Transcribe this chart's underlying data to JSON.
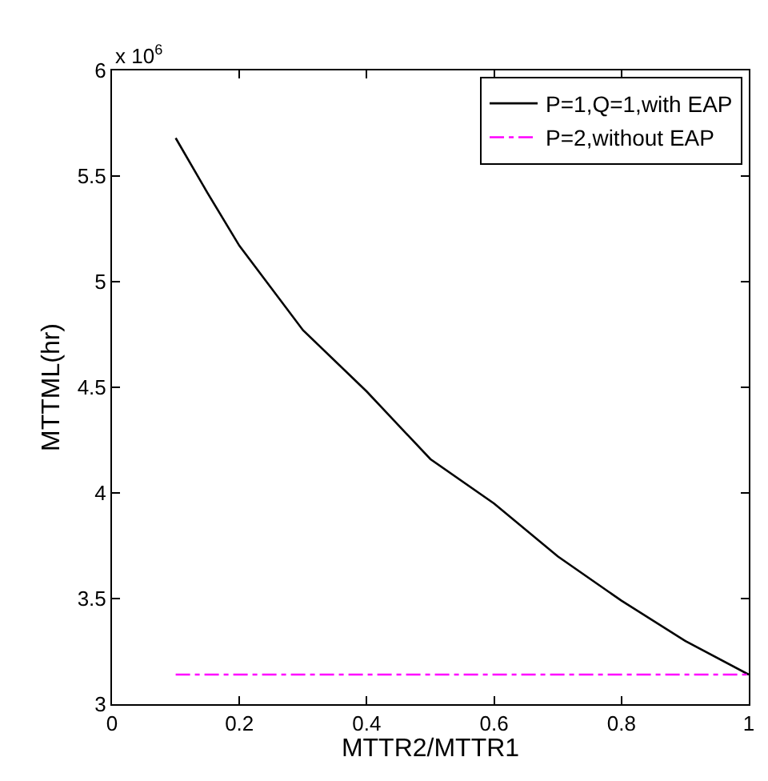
{
  "chart_data": {
    "type": "line",
    "xlabel": "MTTR2/MTTR1",
    "ylabel": "MTTML(hr)",
    "annotations": [
      "x 10$^{6}$"
    ],
    "xlim": [
      0,
      1
    ],
    "xticks": [
      0,
      0.2,
      0.4,
      0.6,
      0.8,
      1
    ],
    "ylim": [
      3,
      6
    ],
    "yticks": [
      3,
      3.5,
      4,
      4.5,
      5,
      5.5,
      6
    ],
    "legend": "top right",
    "series": [
      {
        "name": "P=1,Q=1,with EAP",
        "color": "#000000",
        "line_style": "solid",
        "x": [
          0.1,
          0.15,
          0.2,
          0.3,
          0.4,
          0.5,
          0.6,
          0.7,
          0.8,
          0.9,
          1.0
        ],
        "values": [
          5.68,
          5.42,
          5.17,
          4.77,
          4.48,
          4.16,
          3.95,
          3.7,
          3.49,
          3.3,
          3.14
        ]
      },
      {
        "name": "P=2,without EAP",
        "color": "#ff00ff",
        "line_style": "dashdot",
        "x": [
          0.1,
          1.0
        ],
        "values": [
          3.14,
          3.14
        ]
      }
    ]
  }
}
